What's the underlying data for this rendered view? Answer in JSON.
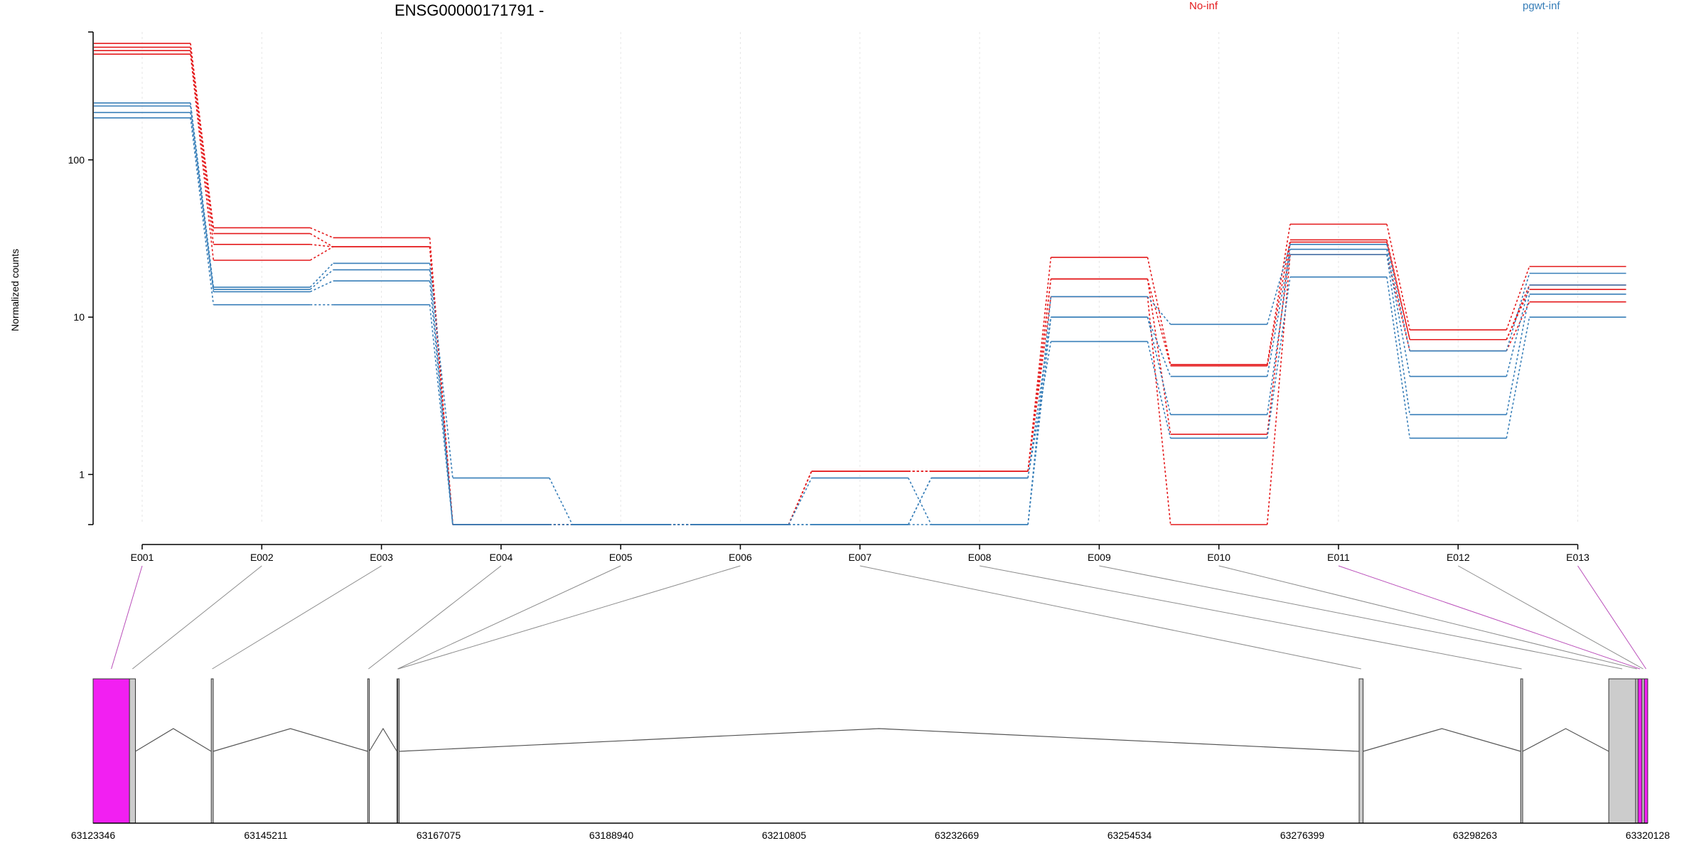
{
  "chart_data": {
    "type": "line",
    "title": "ENSG00000171791 -",
    "ylabel": "Normalized counts",
    "yscale": "log",
    "yticks": [
      "1",
      "10",
      "100"
    ],
    "ylim": [
      0.48,
      650
    ],
    "categories": [
      "E001",
      "E002",
      "E003",
      "E004",
      "E005",
      "E006",
      "E007",
      "E008",
      "E009",
      "E010",
      "E011",
      "E012",
      "E013"
    ],
    "zero_floor": 0.48,
    "legend": [
      {
        "label": "No-inf",
        "color": "#e41a1c"
      },
      {
        "label": "pgwt-inf",
        "color": "#377eb8"
      }
    ],
    "groups": [
      {
        "name": "No-inf",
        "color": "#e41a1c",
        "samples": [
          [
            550,
            37,
            32,
            0.48,
            0.48,
            0.48,
            1.05,
            1.05,
            24,
            5.0,
            39,
            8.3,
            21
          ],
          [
            520,
            34,
            28,
            0.48,
            0.48,
            0.48,
            1.05,
            1.05,
            17.5,
            4.9,
            31,
            7.2,
            16
          ],
          [
            495,
            29,
            28,
            0.48,
            0.48,
            0.48,
            1.05,
            1.05,
            17.5,
            1.8,
            30,
            7.2,
            15
          ],
          [
            470,
            23,
            28,
            0.48,
            0.48,
            0.48,
            1.05,
            1.05,
            13.5,
            0.48,
            25,
            6.1,
            12.5
          ]
        ]
      },
      {
        "name": "pgwt-inf",
        "color": "#377eb8",
        "samples": [
          [
            230,
            15.5,
            22,
            0.95,
            0.48,
            0.48,
            0.95,
            0.48,
            13.5,
            9.0,
            29,
            6.1,
            19
          ],
          [
            220,
            15,
            20,
            0.48,
            0.48,
            0.48,
            0.48,
            0.48,
            10,
            4.2,
            27,
            4.2,
            16
          ],
          [
            200,
            14.5,
            17,
            0.48,
            0.48,
            0.48,
            0.48,
            0.95,
            10,
            2.4,
            25,
            2.4,
            14
          ],
          [
            185,
            12,
            12,
            0.48,
            0.48,
            0.48,
            0.48,
            0.95,
            7,
            1.7,
            18,
            1.7,
            10
          ]
        ]
      }
    ]
  },
  "gene_model": {
    "coordinates": [
      "63123346",
      "63145211",
      "63167075",
      "63188940",
      "63210805",
      "63232669",
      "63254534",
      "63276399",
      "63298263",
      "63320128"
    ],
    "genomic_range": [
      63123346,
      63320128
    ],
    "exon_colors": {
      "highlight": "#f21ff2",
      "normal": "#cccccc"
    },
    "exons": [
      {
        "id": "E001",
        "start": 63123346,
        "end": 63127950,
        "highlight": true
      },
      {
        "id": "E002",
        "start": 63127950,
        "end": 63128700,
        "highlight": false
      },
      {
        "id": "E003",
        "start": 63138300,
        "end": 63138550,
        "highlight": false
      },
      {
        "id": "E004",
        "start": 63158100,
        "end": 63158300,
        "highlight": false
      },
      {
        "id": "E005",
        "start": 63161800,
        "end": 63162000,
        "highlight": false
      },
      {
        "id": "E006",
        "start": 63161900,
        "end": 63162050,
        "highlight": false
      },
      {
        "id": "E007",
        "start": 63283600,
        "end": 63284100,
        "highlight": false
      },
      {
        "id": "E008",
        "start": 63304050,
        "end": 63304300,
        "highlight": false
      },
      {
        "id": "E009",
        "start": 63315200,
        "end": 63318600,
        "highlight": false
      },
      {
        "id": "E010",
        "start": 63318600,
        "end": 63318900,
        "highlight": false
      },
      {
        "id": "E011",
        "start": 63318900,
        "end": 63319400,
        "highlight": true
      },
      {
        "id": "E012",
        "start": 63319400,
        "end": 63319700,
        "highlight": false
      },
      {
        "id": "E013",
        "start": 63319700,
        "end": 63320128,
        "highlight": true
      }
    ],
    "introns": [
      [
        63128700,
        63138300
      ],
      [
        63138550,
        63158100
      ],
      [
        63158300,
        63161800
      ],
      [
        63162050,
        63283600
      ],
      [
        63284100,
        63304050
      ],
      [
        63304300,
        63315200
      ]
    ]
  }
}
